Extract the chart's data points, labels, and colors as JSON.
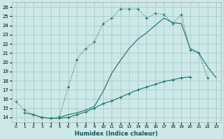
{
  "xlabel": "Humidex (Indice chaleur)",
  "ylabel": "",
  "bg_color": "#cce8e8",
  "grid_color": "#b0cccc",
  "line_color": "#1a7068",
  "xlim": [
    -0.5,
    23.5
  ],
  "ylim": [
    13.5,
    26.5
  ],
  "xticks": [
    0,
    1,
    2,
    3,
    4,
    5,
    6,
    7,
    8,
    9,
    10,
    11,
    12,
    13,
    14,
    15,
    16,
    17,
    18,
    19,
    20,
    21,
    22,
    23
  ],
  "yticks": [
    14,
    15,
    16,
    17,
    18,
    19,
    20,
    21,
    22,
    23,
    24,
    25,
    26
  ],
  "line1_x": [
    0,
    1,
    2,
    3,
    4,
    5,
    6,
    7,
    8,
    9,
    10,
    11,
    12,
    13,
    14,
    15,
    16,
    17,
    18,
    19,
    20,
    21,
    22,
    23
  ],
  "line1_y": [
    15.7,
    14.8,
    14.3,
    14.0,
    13.9,
    14.1,
    17.3,
    20.3,
    21.5,
    22.2,
    24.2,
    24.8,
    25.8,
    25.8,
    25.8,
    24.8,
    25.3,
    25.2,
    24.2,
    25.2,
    21.3,
    21.0,
    18.3,
    null
  ],
  "line2_x": [
    0,
    1,
    2,
    3,
    4,
    5,
    6,
    7,
    8,
    9,
    10,
    11,
    12,
    13,
    14,
    15,
    16,
    17,
    18,
    19,
    20,
    21,
    22,
    23
  ],
  "line2_y": [
    null,
    null,
    null,
    null,
    null,
    14.0,
    14.3,
    14.5,
    14.8,
    15.2,
    16.8,
    18.8,
    20.2,
    21.5,
    22.5,
    23.2,
    24.0,
    24.8,
    24.3,
    24.2,
    21.5,
    21.0,
    19.5,
    18.3
  ],
  "line3_x": [
    0,
    1,
    2,
    3,
    4,
    5,
    6,
    7,
    8,
    9,
    10,
    11,
    12,
    13,
    14,
    15,
    16,
    17,
    18,
    19,
    20,
    21,
    22,
    23
  ],
  "line3_y": [
    null,
    14.5,
    14.3,
    14.0,
    13.9,
    13.9,
    14.0,
    14.3,
    14.6,
    15.0,
    15.5,
    15.8,
    16.2,
    16.6,
    17.0,
    17.3,
    17.6,
    17.9,
    18.1,
    18.3,
    18.4,
    null,
    null,
    null
  ]
}
